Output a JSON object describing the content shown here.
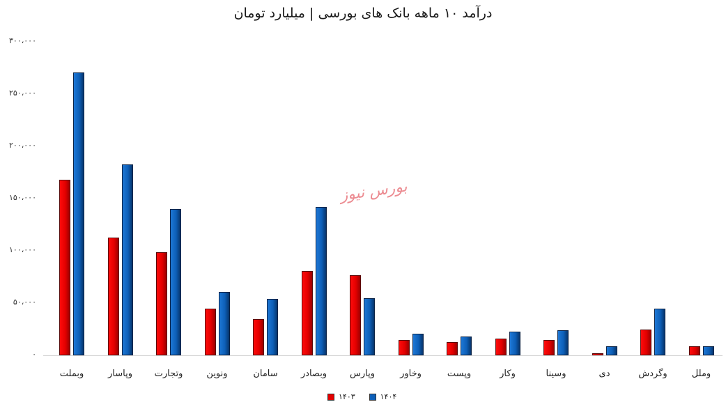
{
  "title": "درآمد ۱۰ ماهه بانک های بورسی | میلیارد تومان",
  "watermark": "بورس نیوز",
  "y_ticks": [
    "۳۰۰،۰۰۰",
    "۲۵۰،۰۰۰",
    "۲۰۰،۰۰۰",
    "۱۵۰،۰۰۰",
    "۱۰۰،۰۰۰",
    "۵۰،۰۰۰",
    "۰"
  ],
  "legend": [
    {
      "label": "۱۴۰۳",
      "color": "#e30000"
    },
    {
      "label": "۱۴۰۴",
      "color": "#0d5fb8"
    }
  ],
  "chart_data": {
    "type": "bar",
    "title": "درآمد ۱۰ ماهه بانک های بورسی | میلیارد تومان",
    "xlabel": "",
    "ylabel": "میلیارد تومان",
    "ylim": [
      0,
      300000
    ],
    "grid": false,
    "legend_position": "bottom",
    "categories": [
      "وبملت",
      "وپاسار",
      "وتجارت",
      "ونوین",
      "سامان",
      "وبصادر",
      "وپارس",
      "وخاور",
      "وپست",
      "وکار",
      "وسینا",
      "دی",
      "وگردش",
      "وملل"
    ],
    "series": [
      {
        "name": "۱۴۰۳",
        "color": "#e30000",
        "values": [
          168000,
          113000,
          99000,
          45000,
          35000,
          81000,
          77000,
          15000,
          13000,
          16000,
          15000,
          2000,
          25000,
          9000
        ]
      },
      {
        "name": "۱۴۰۴",
        "color": "#0d5fb8",
        "values": [
          271000,
          183000,
          140000,
          61000,
          54000,
          142000,
          55000,
          21000,
          18000,
          23000,
          24000,
          9000,
          45000,
          9000
        ]
      }
    ]
  }
}
